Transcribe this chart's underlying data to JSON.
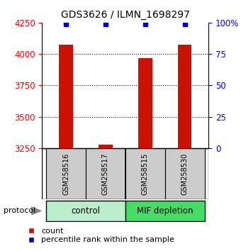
{
  "title": "GDS3626 / ILMN_1698297",
  "samples": [
    "GSM258516",
    "GSM258517",
    "GSM258515",
    "GSM258530"
  ],
  "count_values": [
    4075,
    3280,
    3965,
    4075
  ],
  "percentile_values": [
    99,
    99,
    99,
    99
  ],
  "ylim_left": [
    3250,
    4250
  ],
  "ylim_right": [
    0,
    100
  ],
  "yticks_left": [
    3250,
    3500,
    3750,
    4000,
    4250
  ],
  "yticks_right": [
    0,
    25,
    50,
    75,
    100
  ],
  "ytick_labels_right": [
    "0",
    "25",
    "50",
    "75",
    "100%"
  ],
  "groups": [
    {
      "label": "control",
      "indices": [
        0,
        1
      ],
      "color": "#bbeecc"
    },
    {
      "label": "MIF depletion",
      "indices": [
        2,
        3
      ],
      "color": "#44dd66"
    }
  ],
  "bar_color": "#cc1100",
  "percentile_color": "#0000cc",
  "bar_width": 0.35,
  "sample_box_color": "#cccccc",
  "protocol_label": "protocol",
  "legend_count_label": "count",
  "legend_percentile_label": "percentile rank within the sample",
  "title_fontsize": 10,
  "tick_fontsize": 8.5,
  "legend_fontsize": 8,
  "sample_fontsize": 7,
  "group_fontsize": 8.5
}
